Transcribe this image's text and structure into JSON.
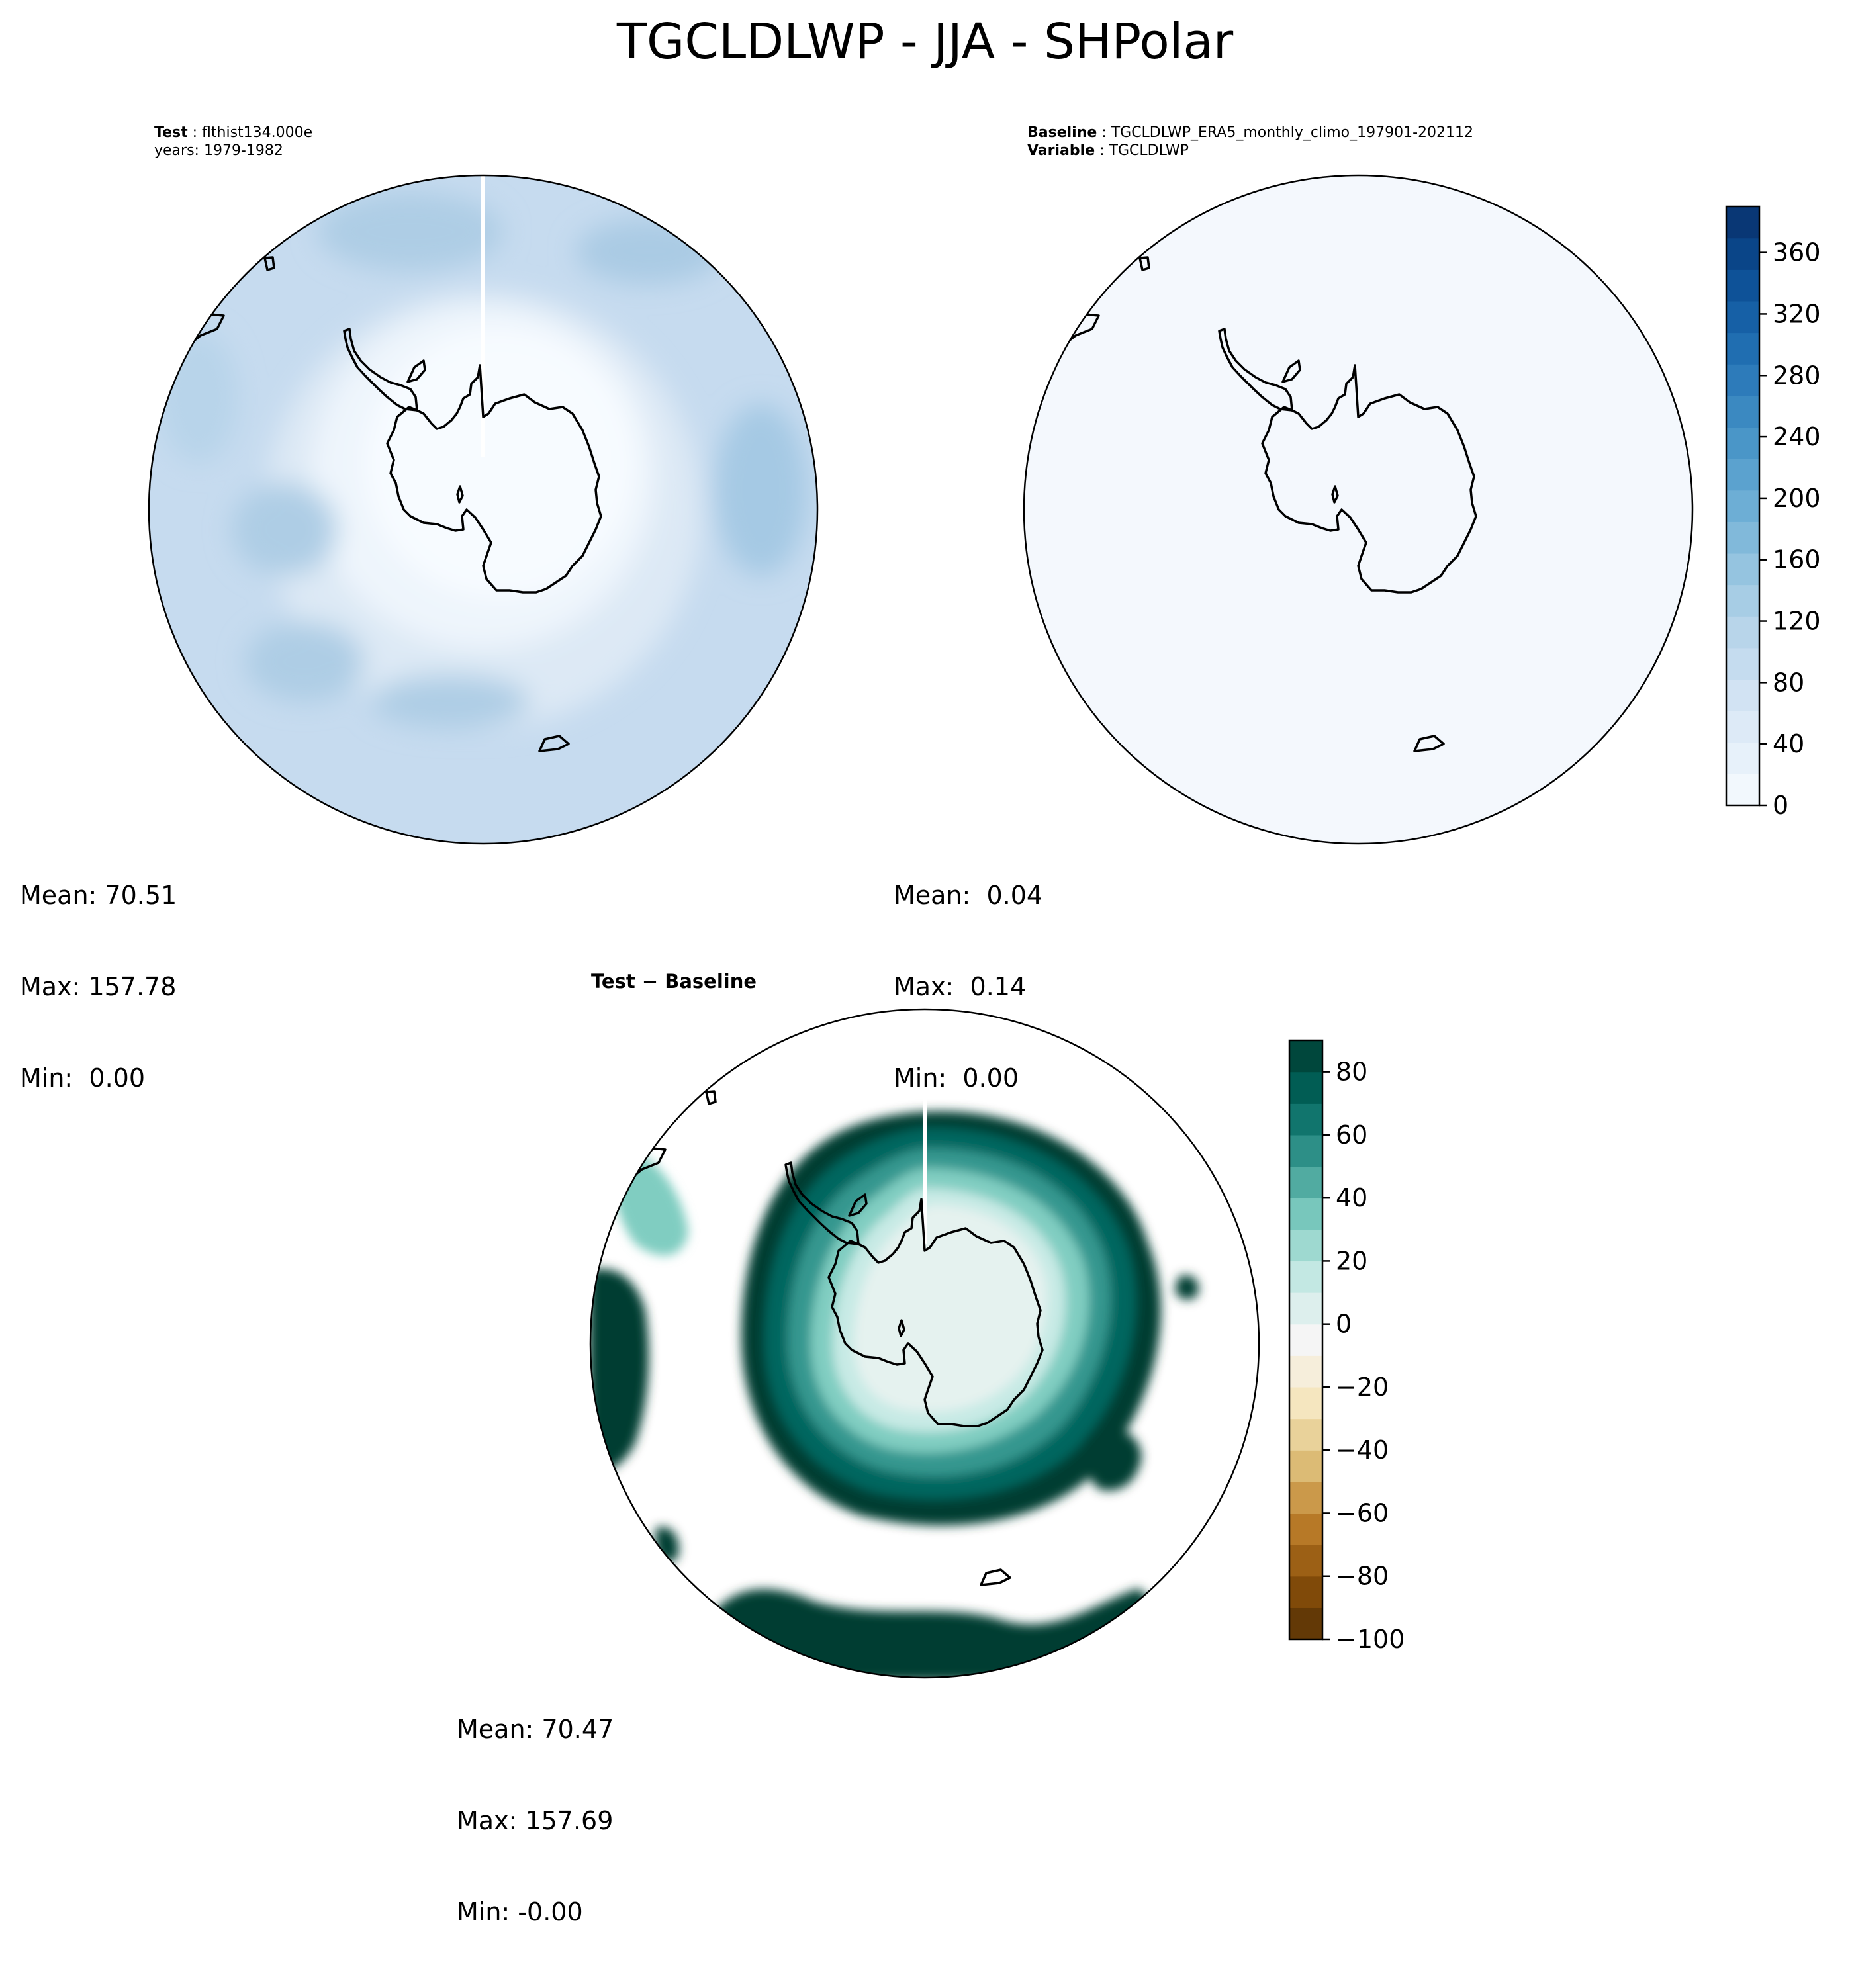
{
  "title": "TGCLDLWP - JJA - SHPolar",
  "panels": {
    "test": {
      "label_bold": "Test",
      "label_text": "flthist134.000e",
      "line2": "years: 1979-1982",
      "mean": "Mean: 70.51",
      "max": "Max: 157.78",
      "min": "Min:  0.00"
    },
    "baseline": {
      "label_bold": "Baseline",
      "label_text": "TGCLDLWP_ERA5_monthly_climo_197901-202112",
      "line2_bold": "Variable",
      "line2_text": "TGCLDLWP",
      "mean": "Mean:  0.04",
      "max": "Max:  0.14",
      "min": "Min:  0.00"
    },
    "diff": {
      "label_bold": "Test − Baseline",
      "mean": "Mean: 70.47",
      "max": "Max: 157.69",
      "min": "Min: -0.00"
    }
  },
  "colors": {
    "blues": [
      "#f7fbff",
      "#e3eef9",
      "#cfe1f2",
      "#b5d4e9",
      "#93c3df",
      "#6daed5",
      "#4b97c9",
      "#2f7ebc",
      "#1864aa",
      "#0a4a90",
      "#08306b"
    ],
    "brbg": [
      "#543005",
      "#8c510a",
      "#bf812d",
      "#dfc27d",
      "#f6e8c3",
      "#f5f5f5",
      "#c7eae5",
      "#80cdc1",
      "#35978f",
      "#01665e",
      "#003c30"
    ]
  },
  "chart_data": [
    {
      "type": "heatmap",
      "name": "test",
      "projection": "south polar stereographic",
      "stats": {
        "mean": 70.51,
        "max": 157.78,
        "min": 0.0
      }
    },
    {
      "type": "heatmap",
      "name": "baseline",
      "projection": "south polar stereographic",
      "stats": {
        "mean": 0.04,
        "max": 0.14,
        "min": 0.0
      },
      "colorbar": {
        "range": [
          0,
          390
        ],
        "ticks": [
          0,
          40,
          80,
          120,
          160,
          200,
          240,
          280,
          320,
          360
        ],
        "tick_labels": [
          "0",
          "40",
          "80",
          "120",
          "160",
          "200",
          "240",
          "280",
          "320",
          "360"
        ],
        "colormap": "Blues"
      }
    },
    {
      "type": "heatmap",
      "name": "diff",
      "projection": "south polar stereographic",
      "stats": {
        "mean": 70.47,
        "max": 157.69,
        "min": -0.0
      },
      "colorbar": {
        "range": [
          -100,
          90
        ],
        "ticks": [
          -100,
          -80,
          -60,
          -40,
          -20,
          0,
          20,
          40,
          60,
          80
        ],
        "tick_labels": [
          "−100",
          "−80",
          "−60",
          "−40",
          "−20",
          "0",
          "20",
          "40",
          "60",
          "80"
        ],
        "colormap": "BrBG"
      }
    }
  ]
}
